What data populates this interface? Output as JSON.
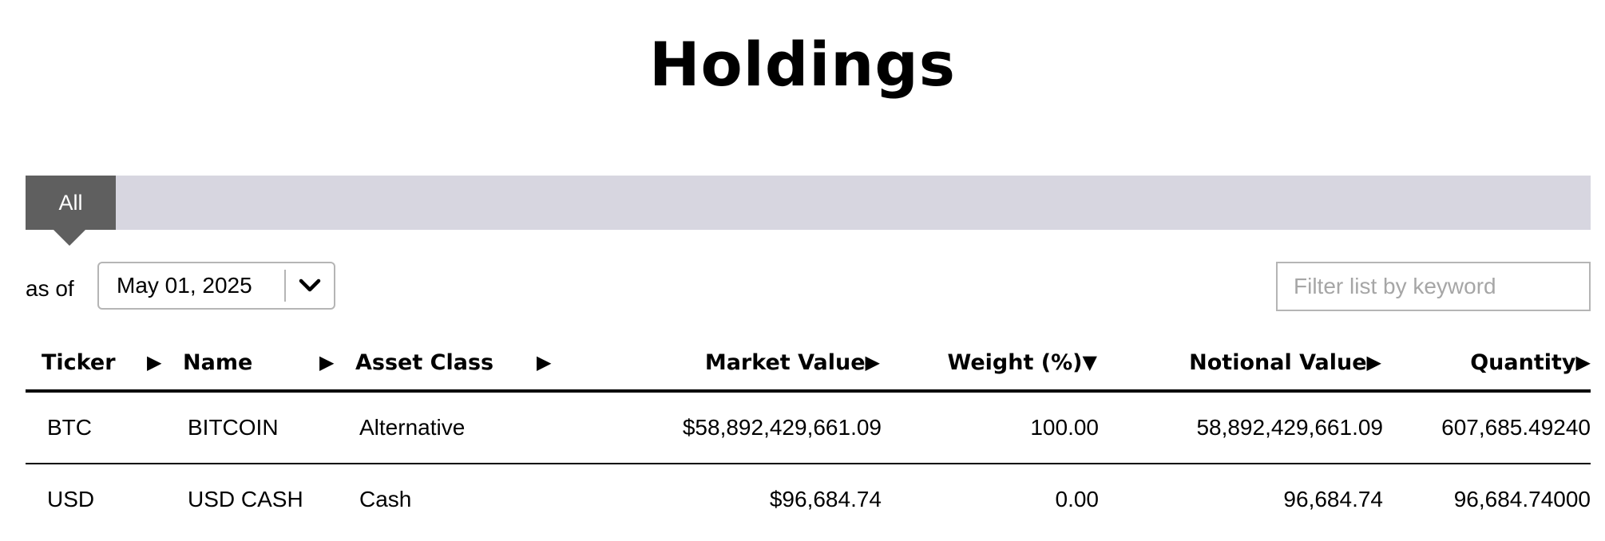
{
  "page": {
    "title": "Holdings"
  },
  "tabs": [
    {
      "label": "All",
      "selected": true
    }
  ],
  "filters": {
    "as_of_label": "as of",
    "date_value": "May 01, 2025",
    "keyword_placeholder": "Filter list by keyword"
  },
  "table": {
    "columns": [
      {
        "label": "Ticker",
        "sort": "▶"
      },
      {
        "label": "Name",
        "sort": "▶"
      },
      {
        "label": "Asset Class",
        "sort": "▶"
      },
      {
        "label": "Market Value",
        "sort": "▶"
      },
      {
        "label": "Weight (%)",
        "sort": "▼"
      },
      {
        "label": "Notional Value",
        "sort": "▶"
      },
      {
        "label": "Quantity",
        "sort": "▶"
      }
    ],
    "rows": [
      {
        "ticker": "BTC",
        "name": "BITCOIN",
        "asset_class": "Alternative",
        "market_value": "$58,892,429,661.09",
        "weight": "100.00",
        "notional_value": "58,892,429,661.09",
        "quantity": "607,685.49240"
      },
      {
        "ticker": "USD",
        "name": "USD CASH",
        "asset_class": "Cash",
        "market_value": "$96,684.74",
        "weight": "0.00",
        "notional_value": "96,684.74",
        "quantity": "96,684.74000"
      }
    ]
  }
}
